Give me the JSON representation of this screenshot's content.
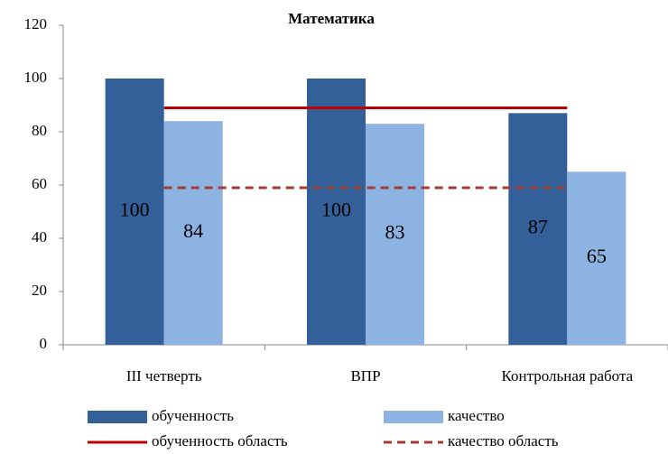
{
  "chart_data": {
    "type": "bar",
    "title": "Математика",
    "categories": [
      "III четверть",
      "ВПР",
      "Контрольная работа"
    ],
    "series": [
      {
        "name": "обученность",
        "color": "#34609a",
        "values": [
          100,
          100,
          87
        ]
      },
      {
        "name": "качество",
        "color": "#8db3e2",
        "values": [
          84,
          83,
          65
        ]
      },
      {
        "name": "обученность область",
        "type": "line",
        "color": "#c00000",
        "dashed": false,
        "values": [
          89,
          89,
          89
        ]
      },
      {
        "name": "качество область",
        "type": "line",
        "color": "#a33a35",
        "dashed": true,
        "values": [
          59,
          59,
          59
        ]
      }
    ],
    "ylim": [
      0,
      120
    ],
    "yticks": [
      0,
      20,
      40,
      60,
      80,
      100,
      120
    ],
    "grid": false,
    "legend": "bottom"
  }
}
